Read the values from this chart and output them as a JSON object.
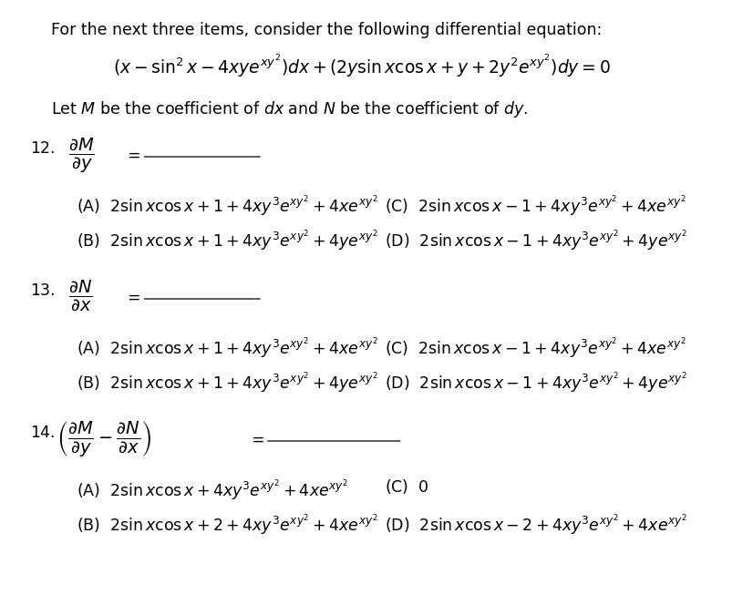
{
  "bg_color": "#ffffff",
  "text_color": "#000000",
  "figsize": [
    8.26,
    6.64
  ],
  "dpi": 100,
  "intro_text": "For the next three items, consider the following differential equation:",
  "equation": "$(x - \\sin^2 x - 4xye^{xy^2})dx + (2y\\sin x\\cos x + y + 2y^2e^{xy^2})dy = 0$",
  "let_text": "Let $M$ be the coefficient of $dx$ and $N$ be the coefficient of $dy$.",
  "q12_label": "12.",
  "q12_A": "(A)  $2\\sin x\\cos x + 1 + 4xy^3e^{xy^2} + 4xe^{xy^2}$",
  "q12_B": "(B)  $2\\sin x\\cos x + 1 + 4xy^3e^{xy^2} + 4ye^{xy^2}$",
  "q12_C": "(C)  $2\\sin x\\cos x - 1 + 4xy^3e^{xy^2} + 4xe^{xy^2}$",
  "q12_D": "(D)  $2\\sin x\\cos x - 1 + 4xy^3e^{xy^2} + 4ye^{xy^2}$",
  "q13_label": "13.",
  "q13_A": "(A)  $2\\sin x\\cos x + 1 + 4xy^3e^{xy^2} + 4xe^{xy^2}$",
  "q13_B": "(B)  $2\\sin x\\cos x + 1 + 4xy^3e^{xy^2} + 4ye^{xy^2}$",
  "q13_C": "(C)  $2\\sin x\\cos x - 1 + 4xy^3e^{xy^2} + 4xe^{xy^2}$",
  "q13_D": "(D)  $2\\sin x\\cos x - 1 + 4xy^3e^{xy^2} + 4ye^{xy^2}$",
  "q14_label": "14.",
  "q14_A": "(A)  $2\\sin x\\cos x + 4xy^3e^{xy^2} + 4xe^{xy^2}$",
  "q14_B": "(B)  $2\\sin x\\cos x + 2 + 4xy^3e^{xy^2} + 4xe^{xy^2}$",
  "q14_C": "(C)  $0$",
  "q14_D": "(D)  $2\\sin x\\cos x - 2 + 4xy^3e^{xy^2} + 4xe^{xy^2}$"
}
